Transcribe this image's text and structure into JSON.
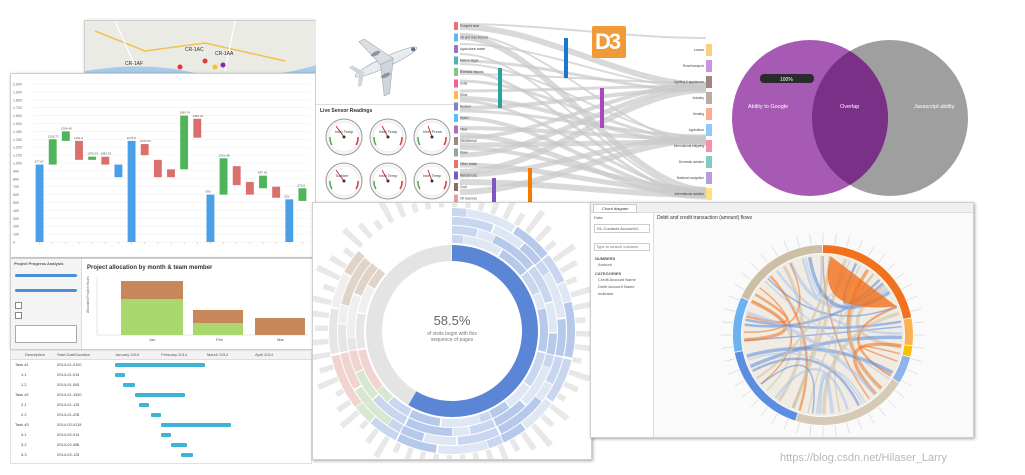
{
  "waterfall": {
    "y_ticks": [
      "2,000",
      "1,900",
      "1,800",
      "1,700",
      "1,600",
      "1,500",
      "1,400",
      "1,300",
      "1,200",
      "1,100",
      "1,000",
      "900",
      "800",
      "700",
      "600",
      "500",
      "400",
      "300",
      "200",
      "100",
      "0"
    ],
    "bars": [
      {
        "label": "977.67",
        "color": "#4a9fe8"
      },
      {
        "label": "1299.72",
        "color": "#4fb45a"
      },
      {
        "label": "1396.46",
        "color": "#4fb45a"
      },
      {
        "label": "1231.6",
        "color": "#d9706e"
      },
      {
        "label": "1075.43",
        "color": "#4fb45a"
      },
      {
        "label": "1083.51",
        "color": "#d9706e"
      },
      {
        "label": "",
        "color": "#4a9fe8"
      },
      {
        "label": "1275.8",
        "color": "#4a9fe8"
      },
      {
        "label": "1237.53",
        "color": "#d9706e"
      },
      {
        "label": "",
        "color": "#d9706e"
      },
      {
        "label": "",
        "color": "#d9706e"
      },
      {
        "label": "1599.74",
        "color": "#4fb45a"
      },
      {
        "label": "1395.21",
        "color": "#d9706e"
      },
      {
        "label": "590",
        "color": "#4a9fe8"
      },
      {
        "label": "1051.68",
        "color": "#4fb45a"
      },
      {
        "label": "",
        "color": "#d9706e"
      },
      {
        "label": "",
        "color": "#d9706e"
      },
      {
        "label": "837.63",
        "color": "#4fb45a"
      },
      {
        "label": "",
        "color": "#d9706e"
      },
      {
        "label": "532",
        "color": "#4a9fe8"
      },
      {
        "label": "670.5",
        "color": "#4fb45a"
      }
    ]
  },
  "sensor": {
    "title": "Live Sensor Readings",
    "gauges": [
      "Inlet Temp",
      "Inlet Temp",
      "Inlet Press",
      "Turbine",
      "Inlet Temp",
      "Inlet Temp"
    ]
  },
  "project": {
    "sidebar_title": "Project Progress Analysis",
    "chart_title": "Project allocation by month & team member",
    "ylabel": "Allocated Project Hours",
    "xlabels": [
      "Jan",
      "Feb",
      "Mar"
    ]
  },
  "gantt": {
    "columns": [
      "Description",
      "Start Date",
      "Duration"
    ],
    "months": [
      "January 2014",
      "February 2014",
      "March 2014",
      "April 2014"
    ],
    "rows": [
      {
        "name": "Task #1",
        "date": "2014-01-01",
        "dur": "20"
      },
      {
        "name": "1.1",
        "date": "2014-01-01",
        "dur": "3"
      },
      {
        "name": "1.2",
        "date": "2014-01-06",
        "dur": "3"
      },
      {
        "name": "Task #2",
        "date": "2014-01-15",
        "dur": "10"
      },
      {
        "name": "2.1",
        "date": "2014-01-12",
        "dur": "3"
      },
      {
        "name": "2.2",
        "date": "2014-01-20",
        "dur": "3"
      },
      {
        "name": "Task #3",
        "date": "2014-02-01",
        "dur": "15"
      },
      {
        "name": "3.1",
        "date": "2014-02-01",
        "dur": "3"
      },
      {
        "name": "3.2",
        "date": "2014-02-06",
        "dur": "5"
      },
      {
        "name": "3.3",
        "date": "2014-02-12",
        "dur": "3"
      }
    ]
  },
  "sankey": {
    "logo": "D3",
    "left_nodes": [
      "Pumped heat",
      "Oil and Gas imports",
      "Agricultural waste",
      "Marine algae",
      "Biomass imports",
      "Solar",
      "Wind",
      "Nuclear",
      "Hydro",
      "Tidal",
      "Geothermal",
      "Wave",
      "Other waste",
      "Natural Gas",
      "Coal",
      "Oil reserves"
    ],
    "right_nodes": [
      "Losses",
      "Road transport",
      "Lighting & appliances",
      "Industry",
      "Heating",
      "Agriculture",
      "International shipping",
      "Domestic aviation",
      "National navigation",
      "International aviation"
    ]
  },
  "venn": {
    "left": "Ability to Google",
    "center": "Overlap",
    "right": "Javascript ability",
    "slider": "100%"
  },
  "sunburst": {
    "percent": "58.5%",
    "caption_line1": "of visits begin with this",
    "caption_line2": "sequence of pages"
  },
  "chord": {
    "tab": "Chord diagram",
    "data_label": "Data",
    "dataset": "DL-Contacts Account/V...",
    "search_placeholder": "Type to search columns",
    "group_numbers": "NUMBERS",
    "numbers_items": [
      "Amount"
    ],
    "group_categories": "CATEGORIES",
    "category_items": [
      "Credit Account Name",
      "Debit Account Name",
      "Indicator"
    ],
    "title": "Debit and credit transaction (amount) flows"
  },
  "map": {
    "labels": [
      "CR-1AF",
      "CR-1AC",
      "CR-1AA"
    ]
  },
  "watermark": "https://blog.csdn.net/Hilaser_Larry"
}
